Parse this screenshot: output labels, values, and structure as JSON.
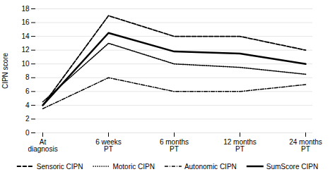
{
  "chart_data": {
    "type": "line",
    "categories": [
      "At\ndiagnosis",
      "6 weeks\nPT",
      "6 months\nPT",
      "12 months\nPT",
      "24 months\nPT"
    ],
    "series": [
      {
        "name": "Sensoric CIPN",
        "color": "#000000",
        "line_style": "dashed",
        "values": [
          4.0,
          17.0,
          14.0,
          14.0,
          12.0
        ]
      },
      {
        "name": "Motoric CIPN",
        "color": "#000000",
        "line_style": "dotted",
        "values": [
          4.5,
          13.0,
          10.0,
          9.5,
          8.5
        ]
      },
      {
        "name": "Autonomic CIPN",
        "color": "#000000",
        "line_style": "dashdot",
        "values": [
          3.5,
          8.0,
          6.0,
          6.0,
          7.0
        ]
      },
      {
        "name": "SumScore CIPN",
        "color": "#000000",
        "line_style": "solid",
        "values": [
          4.0,
          14.5,
          11.8,
          11.5,
          10.0
        ]
      }
    ],
    "ylabel": "CIPN score",
    "ylim": [
      0,
      18
    ],
    "yticks": [
      0,
      2,
      4,
      6,
      8,
      10,
      12,
      14,
      16,
      18
    ],
    "grid": true,
    "legend": "bottom"
  }
}
